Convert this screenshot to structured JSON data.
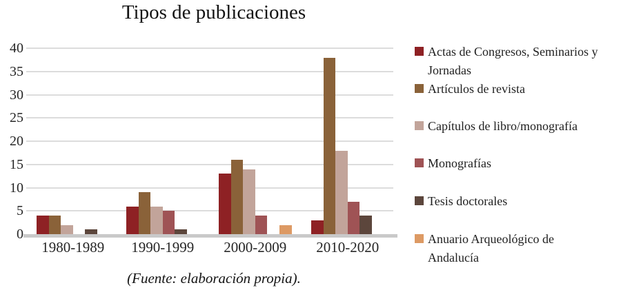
{
  "chart_data": {
    "type": "bar",
    "title": "Tipos de publicaciones",
    "categories": [
      "1980-1989",
      "1990-1999",
      "2000-2009",
      "2010-2020"
    ],
    "series": [
      {
        "name": "Actas de Congresos, Seminarios y Jornadas",
        "color": "#8E2124",
        "values": [
          4,
          6,
          13,
          3
        ]
      },
      {
        "name": "Artículos de revista",
        "color": "#8A6239",
        "values": [
          4,
          9,
          16,
          38
        ]
      },
      {
        "name": "Capítulos de libro/monografía",
        "color": "#C2A49A",
        "values": [
          2,
          6,
          14,
          18
        ]
      },
      {
        "name": "Monografías",
        "color": "#9F5355",
        "values": [
          0,
          5,
          4,
          7
        ]
      },
      {
        "name": "Tesis doctorales",
        "color": "#5C463C",
        "values": [
          1,
          1,
          0,
          4
        ]
      },
      {
        "name": "Anuario Arqueológico de Andalucía",
        "color": "#DD9A64",
        "values": [
          0,
          0,
          2,
          0
        ]
      }
    ],
    "xlabel": "",
    "ylabel": "",
    "ylim": [
      0,
      40
    ],
    "yticks": [
      0,
      5,
      10,
      15,
      20,
      25,
      30,
      35,
      40
    ],
    "grid": true,
    "legend_position": "right",
    "gridline_color": "#DCDCDC",
    "baseline_color": "#C9C9C9"
  },
  "footer": {
    "text": "(Fuente: elaboración propia)."
  }
}
